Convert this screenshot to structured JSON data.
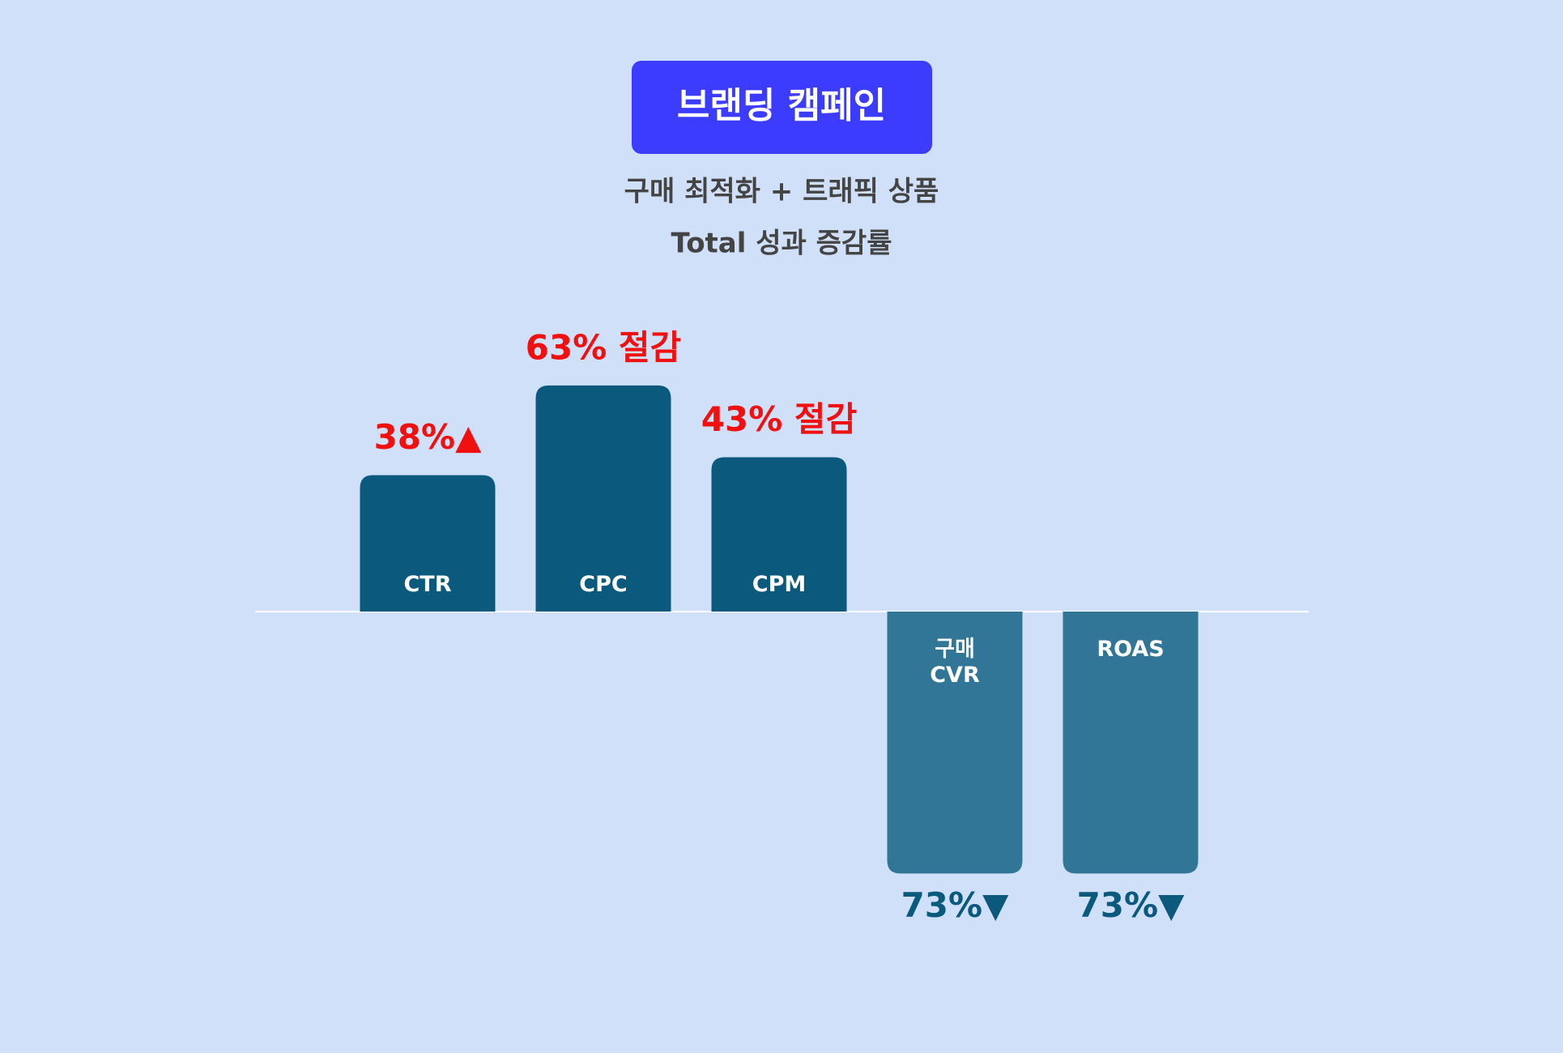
{
  "chart_data": {
    "type": "bar",
    "title": "브랜딩 캠페인",
    "subtitle": [
      "구매 최적화 + 트래픽 상품",
      "Total 성과 증감률"
    ],
    "categories": [
      "CTR",
      "CPC",
      "CPM",
      "구매\nCVR",
      "ROAS"
    ],
    "values": [
      38,
      63,
      43,
      -73,
      -73
    ],
    "value_labels": [
      "38%▲",
      "63% 절감",
      "43% 절감",
      "73%▼",
      "73%▼"
    ],
    "colors": [
      "#0b5a7e",
      "#0b5a7e",
      "#0b5a7e",
      "#317697",
      "#317697"
    ],
    "label_colors": [
      "#f01010",
      "#f01010",
      "#f01010",
      "#0b5a7e",
      "#0b5a7e"
    ]
  }
}
